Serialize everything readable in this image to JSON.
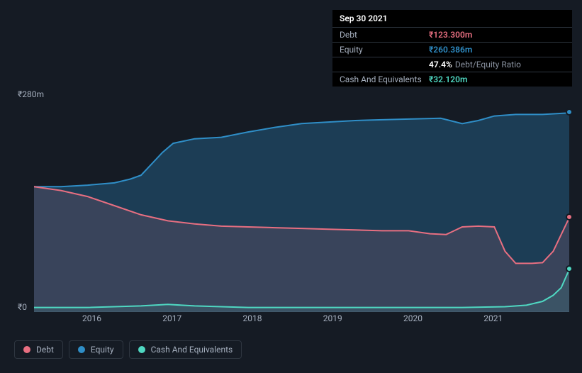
{
  "tooltip": {
    "date": "Sep 30 2021",
    "rows": [
      {
        "label": "Debt",
        "value": "₹123.300m",
        "color": "#e86f81",
        "extra": ""
      },
      {
        "label": "Equity",
        "value": "₹260.386m",
        "color": "#2f8ec7",
        "extra": ""
      },
      {
        "label": "",
        "value": "47.4%",
        "color": "#ffffff",
        "extra": "Debt/Equity Ratio"
      },
      {
        "label": "Cash And Equivalents",
        "value": "₹32.120m",
        "color": "#4fd8c2",
        "extra": ""
      }
    ]
  },
  "chart": {
    "type": "area",
    "background": "#151b24",
    "grid_color": "#2e3640",
    "ylim": [
      0,
      280
    ],
    "ylabels": [
      {
        "v": 280,
        "text": "₹280m"
      },
      {
        "v": 0,
        "text": "₹0"
      }
    ],
    "xcategories": [
      "2016",
      "2017",
      "2018",
      "2019",
      "2020",
      "2021"
    ],
    "xfracs": [
      0.108,
      0.258,
      0.408,
      0.558,
      0.708,
      0.858
    ],
    "series": [
      {
        "name": "Equity",
        "color": "#2f8ec7",
        "fill": "rgba(47,142,199,0.30)",
        "points": [
          [
            0.0,
            165
          ],
          [
            0.05,
            165
          ],
          [
            0.1,
            167
          ],
          [
            0.15,
            170
          ],
          [
            0.18,
            175
          ],
          [
            0.2,
            180
          ],
          [
            0.22,
            195
          ],
          [
            0.24,
            210
          ],
          [
            0.26,
            222
          ],
          [
            0.3,
            228
          ],
          [
            0.35,
            230
          ],
          [
            0.4,
            237
          ],
          [
            0.45,
            243
          ],
          [
            0.5,
            248
          ],
          [
            0.55,
            250
          ],
          [
            0.6,
            252
          ],
          [
            0.65,
            253
          ],
          [
            0.7,
            254
          ],
          [
            0.76,
            255
          ],
          [
            0.8,
            248
          ],
          [
            0.83,
            252
          ],
          [
            0.86,
            258
          ],
          [
            0.9,
            260
          ],
          [
            0.95,
            260
          ],
          [
            1.0,
            262
          ]
        ]
      },
      {
        "name": "Debt",
        "color": "#e86f81",
        "fill": "rgba(232,111,129,0.14)",
        "points": [
          [
            0.0,
            165
          ],
          [
            0.05,
            160
          ],
          [
            0.1,
            152
          ],
          [
            0.15,
            140
          ],
          [
            0.2,
            128
          ],
          [
            0.25,
            120
          ],
          [
            0.3,
            116
          ],
          [
            0.35,
            113
          ],
          [
            0.4,
            112
          ],
          [
            0.45,
            111
          ],
          [
            0.5,
            110
          ],
          [
            0.55,
            109
          ],
          [
            0.6,
            108
          ],
          [
            0.65,
            107
          ],
          [
            0.7,
            107
          ],
          [
            0.74,
            103
          ],
          [
            0.77,
            102
          ],
          [
            0.8,
            112
          ],
          [
            0.83,
            113
          ],
          [
            0.86,
            112
          ],
          [
            0.88,
            80
          ],
          [
            0.9,
            64
          ],
          [
            0.93,
            64
          ],
          [
            0.95,
            65
          ],
          [
            0.97,
            80
          ],
          [
            1.0,
            124
          ]
        ]
      },
      {
        "name": "Cash And Equivalents",
        "color": "#4fd8c2",
        "fill": "rgba(79,216,194,0.10)",
        "points": [
          [
            0.0,
            6
          ],
          [
            0.1,
            6
          ],
          [
            0.2,
            8
          ],
          [
            0.25,
            10
          ],
          [
            0.3,
            8
          ],
          [
            0.4,
            6
          ],
          [
            0.5,
            6
          ],
          [
            0.6,
            6
          ],
          [
            0.7,
            6
          ],
          [
            0.8,
            6
          ],
          [
            0.88,
            7
          ],
          [
            0.92,
            9
          ],
          [
            0.95,
            14
          ],
          [
            0.97,
            22
          ],
          [
            0.985,
            32
          ],
          [
            1.0,
            56
          ]
        ]
      }
    ],
    "end_markers": [
      {
        "name": "equity-end",
        "y": 262,
        "color": "#2f8ec7"
      },
      {
        "name": "debt-end",
        "y": 124,
        "color": "#e86f81"
      },
      {
        "name": "cash-end",
        "y": 56,
        "color": "#4fd8c2"
      }
    ]
  },
  "legend": [
    {
      "label": "Debt",
      "color": "#e86f81"
    },
    {
      "label": "Equity",
      "color": "#2f8ec7"
    },
    {
      "label": "Cash And Equivalents",
      "color": "#4fd8c2"
    }
  ]
}
